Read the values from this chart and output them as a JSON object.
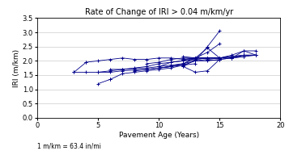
{
  "title": "Rate of Change of IRI > 0.04 m/km/yr",
  "xlabel": "Pavement Age (Years)",
  "ylabel": "IRI (m/km)",
  "footnote": "1 m/km = 63.4 in/mi",
  "xlim": [
    0,
    20
  ],
  "ylim": [
    0.0,
    3.5
  ],
  "xticks": [
    0,
    5,
    10,
    15,
    20
  ],
  "yticks": [
    0.0,
    0.5,
    1.0,
    1.5,
    2.0,
    2.5,
    3.0,
    3.5
  ],
  "line_color": "#00008B",
  "series": [
    [
      [
        3,
        4
      ],
      [
        1.6,
        1.95
      ]
    ],
    [
      [
        4,
        5,
        6,
        7,
        8,
        9,
        10,
        11,
        12,
        13,
        14,
        15,
        16
      ],
      [
        1.95,
        2.0,
        2.05,
        2.1,
        2.05,
        2.05,
        2.1,
        2.1,
        2.05,
        2.1,
        2.1,
        2.1,
        2.15
      ]
    ],
    [
      [
        3,
        4,
        5,
        6,
        7,
        8,
        9,
        10,
        11,
        12,
        13
      ],
      [
        1.6,
        1.6,
        1.6,
        1.65,
        1.7,
        1.75,
        1.8,
        1.9,
        1.95,
        2.0,
        2.1
      ]
    ],
    [
      [
        5,
        6
      ],
      [
        1.2,
        1.35
      ]
    ],
    [
      [
        6,
        7,
        8,
        9,
        10,
        11,
        12,
        13
      ],
      [
        1.35,
        1.55,
        1.6,
        1.65,
        1.7,
        1.75,
        1.85,
        1.9
      ]
    ],
    [
      [
        5,
        6,
        7,
        8,
        9,
        10,
        11,
        12,
        13
      ],
      [
        1.6,
        1.6,
        1.65,
        1.68,
        1.7,
        1.75,
        1.8,
        1.85,
        2.0
      ]
    ],
    [
      [
        6,
        7,
        8,
        9,
        10,
        11,
        12,
        13,
        14,
        15
      ],
      [
        1.7,
        1.7,
        1.73,
        1.75,
        1.8,
        1.85,
        1.9,
        2.1,
        2.3,
        2.6
      ]
    ],
    [
      [
        8,
        9,
        10,
        11,
        12,
        13,
        14,
        15
      ],
      [
        1.65,
        1.7,
        1.75,
        1.8,
        1.9,
        2.0,
        2.5,
        3.05
      ]
    ],
    [
      [
        10,
        11,
        12,
        13
      ],
      [
        1.75,
        1.8,
        1.9,
        2.1
      ]
    ],
    [
      [
        10,
        11,
        12,
        13,
        14,
        15,
        16,
        17,
        18
      ],
      [
        1.8,
        1.95,
        2.0,
        2.05,
        2.1,
        2.1,
        2.15,
        2.2,
        2.2
      ]
    ],
    [
      [
        12,
        13,
        14,
        15,
        16,
        17,
        18
      ],
      [
        2.15,
        2.1,
        2.1,
        2.1,
        2.1,
        2.15,
        2.2
      ]
    ],
    [
      [
        12,
        13,
        14,
        15
      ],
      [
        2.05,
        2.1,
        2.45,
        2.1
      ]
    ],
    [
      [
        12,
        13
      ],
      [
        1.8,
        2.05
      ]
    ],
    [
      [
        12,
        13,
        14,
        15,
        16,
        17
      ],
      [
        1.8,
        1.6,
        1.65,
        2.05,
        2.1,
        2.15
      ]
    ],
    [
      [
        13,
        14,
        15,
        16,
        17,
        18
      ],
      [
        2.0,
        2.05,
        2.1,
        2.2,
        2.35,
        2.35
      ]
    ],
    [
      [
        14,
        15
      ],
      [
        2.05,
        2.05
      ]
    ],
    [
      [
        13,
        14,
        15,
        16,
        17,
        18
      ],
      [
        2.0,
        2.0,
        2.05,
        2.1,
        2.2,
        2.2
      ]
    ],
    [
      [
        9,
        10,
        11,
        12,
        13,
        14,
        15
      ],
      [
        1.9,
        1.95,
        2.05,
        2.1,
        2.1,
        2.1,
        2.1
      ]
    ],
    [
      [
        13,
        14,
        15,
        16,
        17
      ],
      [
        2.05,
        2.1,
        2.1,
        2.15,
        2.2
      ]
    ],
    [
      [
        16,
        17,
        18
      ],
      [
        2.1,
        2.35,
        2.2
      ]
    ]
  ]
}
